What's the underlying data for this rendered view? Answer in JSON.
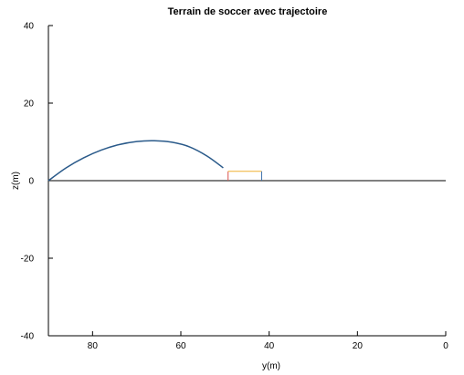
{
  "chart_data": {
    "type": "line",
    "title": "Terrain de soccer avec trajectoire",
    "xlabel": "y(m)",
    "ylabel": "z(m)",
    "xlim": [
      90,
      0
    ],
    "ylim": [
      -40,
      40
    ],
    "x_ticks": [
      80,
      60,
      40,
      20,
      0
    ],
    "x_tick_labels": [
      "80",
      "60",
      "40",
      "20",
      "0"
    ],
    "y_ticks": [
      40,
      20,
      0,
      -20,
      -40
    ],
    "y_tick_labels": [
      "40",
      "20",
      "0",
      "-20",
      "-40"
    ],
    "grid": false,
    "series": [
      {
        "color": "#2a5a8a",
        "x": [
          90,
          86,
          82,
          78,
          74,
          70,
          66,
          62,
          58,
          54,
          50.4
        ],
        "y": [
          0,
          3.3,
          5.9,
          7.9,
          9.3,
          10.1,
          10.3,
          9.9,
          8.7,
          6.3,
          3.3
        ]
      }
    ],
    "ground_line": {
      "y": 0,
      "x": [
        90,
        0
      ],
      "color": "#000000"
    },
    "goal": {
      "x": [
        49.3,
        41.7
      ],
      "height": 2.4,
      "left_post_color": "#d9534f",
      "crossbar_color": "#f0b030",
      "right_post_color": "#3a6ea8"
    }
  }
}
